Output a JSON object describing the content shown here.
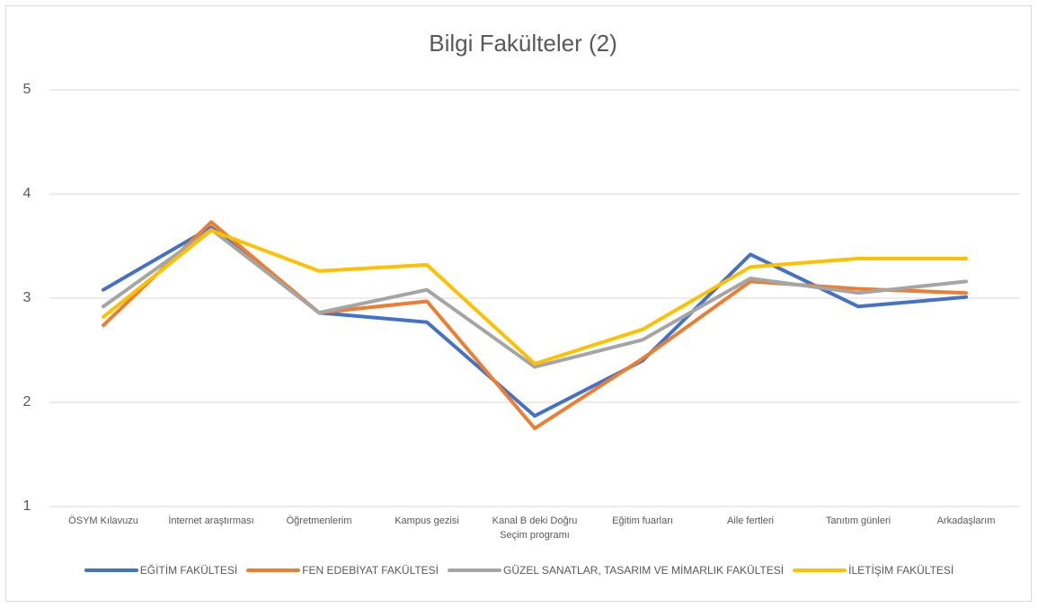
{
  "chart_data": {
    "type": "line",
    "title": "Bilgi Fakülteler (2)",
    "categories": [
      "ÖSYM Kılavuzu",
      "İnternet araştırması",
      "Öğretmenlerim",
      "Kampus gezisi",
      "Kanal B deki Doğru Seçim programı",
      "Eğitim fuarları",
      "Aile fertleri",
      "Tanıtım günleri",
      "Arkadaşlarım"
    ],
    "series": [
      {
        "name": "EĞİTİM FAKÜLTESİ",
        "color": "#4472c4",
        "values": [
          3.08,
          3.68,
          2.86,
          2.77,
          1.87,
          2.4,
          3.42,
          2.92,
          3.01
        ]
      },
      {
        "name": "FEN EDEBİYAT FAKÜLTESİ",
        "color": "#ed7d31",
        "values": [
          2.74,
          3.73,
          2.86,
          2.97,
          1.75,
          2.42,
          3.16,
          3.09,
          3.05
        ]
      },
      {
        "name": "GÜZEL SANATLAR, TASARIM VE MİMARLIK FAKÜLTESİ",
        "color": "#a5a5a5",
        "values": [
          2.92,
          3.66,
          2.86,
          3.08,
          2.34,
          2.6,
          3.19,
          3.05,
          3.16
        ]
      },
      {
        "name": "İLETİŞİM FAKÜLTESİ",
        "color": "#ffc000",
        "values": [
          2.82,
          3.65,
          3.26,
          3.32,
          2.37,
          2.7,
          3.3,
          3.38,
          3.38
        ]
      }
    ],
    "ylim": [
      1,
      5
    ],
    "yticks": [
      1,
      2,
      3,
      4,
      5
    ],
    "grid": true,
    "legend": "bottom"
  }
}
